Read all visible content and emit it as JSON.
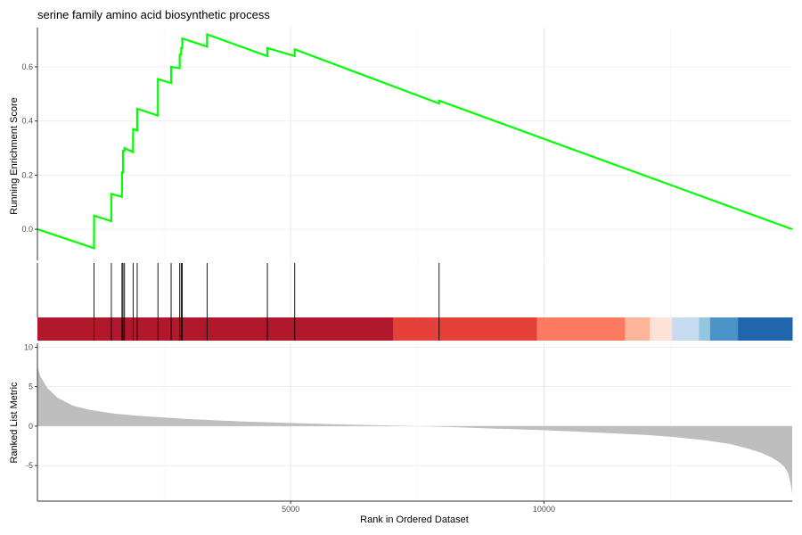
{
  "chart_data": {
    "type": "line",
    "title": "serine family amino acid biosynthetic process",
    "xlabel": "Rank in Ordered Dataset",
    "xlim": [
      1,
      14900
    ],
    "x_ticks": [
      5000,
      10000
    ],
    "x_tick_labels": [
      "5000",
      "10000"
    ],
    "grid": true,
    "panels": [
      {
        "name": "running-enrichment",
        "ylabel": "Running Enrichment Score",
        "ylim": [
          -0.115,
          0.745
        ],
        "y_ticks": [
          0.0,
          0.2,
          0.4,
          0.6
        ],
        "y_tick_labels": [
          "0.0",
          "0.2",
          "0.4",
          "0.6"
        ],
        "line_color": "#00ff00",
        "series": [
          {
            "x": [
              1,
              1118,
              1119,
              1459,
              1460,
              1669,
              1670,
              1689,
              1690,
              1719,
              1720,
              1889,
              1890,
              1969,
              1970,
              2379,
              2380,
              2639,
              2640,
              2809,
              2810,
              2839,
              2840,
              2859,
              2860,
              3349,
              3350,
              4539,
              4540,
              5079,
              5080,
              7929,
              7930,
              14900
            ],
            "y": [
              0.0,
              -0.07,
              0.05,
              0.03,
              0.13,
              0.12,
              0.21,
              0.21,
              0.29,
              0.29,
              0.3,
              0.285,
              0.37,
              0.365,
              0.445,
              0.42,
              0.555,
              0.54,
              0.6,
              0.595,
              0.645,
              0.645,
              0.67,
              0.67,
              0.705,
              0.675,
              0.72,
              0.64,
              0.67,
              0.64,
              0.665,
              0.465,
              0.475,
              0.0
            ]
          }
        ]
      },
      {
        "name": "gene-hits",
        "hit_ranks": [
          1119,
          1460,
          1670,
          1690,
          1720,
          1890,
          1970,
          2380,
          2640,
          2810,
          2840,
          2860,
          3350,
          4540,
          5080,
          7930
        ]
      },
      {
        "name": "rank-color-bar",
        "segments": [
          {
            "from": 1,
            "to": 7020,
            "color": "#b2182b"
          },
          {
            "from": 7020,
            "to": 9860,
            "color": "#e5403a"
          },
          {
            "from": 9860,
            "to": 11600,
            "color": "#fb7a5f"
          },
          {
            "from": 11600,
            "to": 12090,
            "color": "#fdb59a"
          },
          {
            "from": 12090,
            "to": 12530,
            "color": "#fee2d7"
          },
          {
            "from": 12530,
            "to": 13060,
            "color": "#c6dbef"
          },
          {
            "from": 13060,
            "to": 13280,
            "color": "#93c4e0"
          },
          {
            "from": 13280,
            "to": 13830,
            "color": "#4a93c7"
          },
          {
            "from": 13830,
            "to": 14900,
            "color": "#2166ac"
          }
        ]
      },
      {
        "name": "ranked-list-metric",
        "type": "area",
        "ylabel": "Ranked List Metric",
        "ylim": [
          -9.5,
          10.5
        ],
        "y_ticks": [
          -5,
          0,
          5,
          10
        ],
        "y_tick_labels": [
          "-5",
          "0",
          "5",
          "10"
        ],
        "fill_color": "#bebebe",
        "series": [
          {
            "x": [
              1,
              60,
              200,
              400,
              700,
              1000,
              1500,
              2000,
              3000,
              4000,
              5000,
              6000,
              7000,
              7500,
              8000,
              9000,
              10000,
              11000,
              12000,
              12600,
              13200,
              13700,
              14000,
              14300,
              14500,
              14650,
              14750,
              14820,
              14870,
              14900
            ],
            "y": [
              7.6,
              6.3,
              4.8,
              3.6,
              2.6,
              2.1,
              1.6,
              1.3,
              0.9,
              0.6,
              0.4,
              0.22,
              0.08,
              0.0,
              -0.08,
              -0.3,
              -0.5,
              -0.8,
              -1.1,
              -1.4,
              -1.8,
              -2.3,
              -2.8,
              -3.4,
              -4.0,
              -4.6,
              -5.2,
              -6.0,
              -7.3,
              -8.6
            ]
          }
        ]
      }
    ]
  }
}
